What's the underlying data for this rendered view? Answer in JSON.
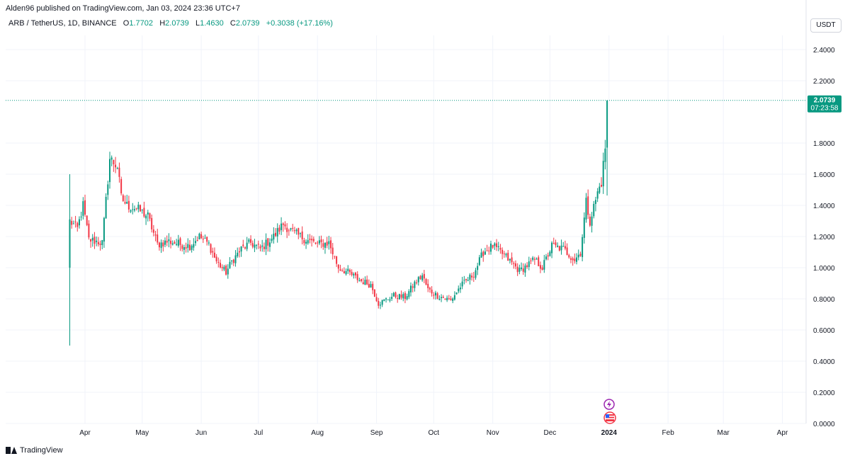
{
  "header": {
    "published": "Alden96 published on TradingView.com, Jan 03, 2024 23:36 UTC+7",
    "symbol": "ARB / TetherUS, 1D, BINANCE",
    "open_label": "O",
    "open_value": "1.7702",
    "high_label": "H",
    "high_value": "2.0739",
    "low_label": "L",
    "low_value": "1.4630",
    "close_label": "C",
    "close_value": "2.0739",
    "change": "+0.3038 (+17.16%)"
  },
  "currency_button": "USDT",
  "price_tag": {
    "price": "2.0739",
    "countdown": "07:23:58"
  },
  "branding": "TradingView",
  "colors": {
    "up": "#089981",
    "down": "#f23645",
    "grid": "#f0f3fa",
    "text": "#131722"
  },
  "icons": [
    "lightning-event-icon",
    "us-flag-event-icon"
  ],
  "chart_data": {
    "type": "candlestick",
    "yticks": [
      "2.4000",
      "2.2000",
      "1.8000",
      "1.6000",
      "1.4000",
      "1.2000",
      "1.0000",
      "0.8000",
      "0.6000",
      "0.4000",
      "0.2000",
      "0.0000"
    ],
    "ylim": [
      0,
      2.4
    ],
    "xticks": [
      {
        "label": "Apr",
        "day": 8
      },
      {
        "label": "May",
        "day": 38
      },
      {
        "label": "Jun",
        "day": 69
      },
      {
        "label": "Jul",
        "day": 99
      },
      {
        "label": "Aug",
        "day": 130
      },
      {
        "label": "Sep",
        "day": 161
      },
      {
        "label": "Oct",
        "day": 191
      },
      {
        "label": "Nov",
        "day": 222
      },
      {
        "label": "Dec",
        "day": 252
      },
      {
        "label": "2024",
        "day": 283
      },
      {
        "label": "Feb",
        "day": 314
      },
      {
        "label": "Mar",
        "day": 343
      },
      {
        "label": "Apr",
        "day": 374
      }
    ],
    "last_price": 2.0739,
    "anchors": [
      [
        0,
        1.3
      ],
      [
        4,
        1.25
      ],
      [
        7,
        1.4
      ],
      [
        10,
        1.18
      ],
      [
        17,
        1.16
      ],
      [
        21,
        1.7
      ],
      [
        25,
        1.65
      ],
      [
        27,
        1.45
      ],
      [
        30,
        1.4
      ],
      [
        35,
        1.38
      ],
      [
        41,
        1.33
      ],
      [
        46,
        1.15
      ],
      [
        52,
        1.17
      ],
      [
        58,
        1.15
      ],
      [
        63,
        1.14
      ],
      [
        68,
        1.2
      ],
      [
        73,
        1.15
      ],
      [
        77,
        1.04
      ],
      [
        82,
        0.97
      ],
      [
        85,
        1.04
      ],
      [
        90,
        1.12
      ],
      [
        95,
        1.16
      ],
      [
        100,
        1.12
      ],
      [
        107,
        1.2
      ],
      [
        112,
        1.28
      ],
      [
        118,
        1.22
      ],
      [
        124,
        1.18
      ],
      [
        130,
        1.15
      ],
      [
        136,
        1.16
      ],
      [
        141,
        1.0
      ],
      [
        146,
        0.97
      ],
      [
        152,
        0.92
      ],
      [
        158,
        0.89
      ],
      [
        162,
        0.77
      ],
      [
        170,
        0.82
      ],
      [
        176,
        0.81
      ],
      [
        181,
        0.9
      ],
      [
        185,
        0.95
      ],
      [
        188,
        0.86
      ],
      [
        193,
        0.82
      ],
      [
        200,
        0.79
      ],
      [
        205,
        0.88
      ],
      [
        212,
        0.96
      ],
      [
        217,
        1.1
      ],
      [
        222,
        1.14
      ],
      [
        228,
        1.08
      ],
      [
        236,
        0.98
      ],
      [
        244,
        1.05
      ],
      [
        248,
        1.0
      ],
      [
        253,
        1.14
      ],
      [
        259,
        1.12
      ],
      [
        265,
        1.05
      ],
      [
        268,
        1.1
      ],
      [
        271,
        1.42
      ],
      [
        273,
        1.3
      ],
      [
        277,
        1.48
      ],
      [
        279,
        1.55
      ],
      [
        281,
        1.77
      ],
      [
        282,
        2.07
      ]
    ]
  }
}
